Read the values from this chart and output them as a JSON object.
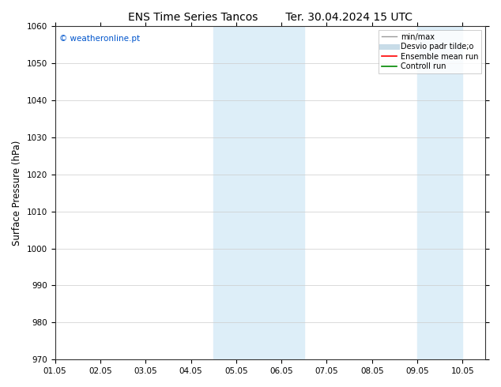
{
  "title_left": "ENS Time Series Tancos",
  "title_right": "Ter. 30.04.2024 15 UTC",
  "ylabel": "Surface Pressure (hPa)",
  "ylim": [
    970,
    1060
  ],
  "yticks": [
    970,
    980,
    990,
    1000,
    1010,
    1020,
    1030,
    1040,
    1050,
    1060
  ],
  "xlim": [
    0.0,
    9.5
  ],
  "xtick_labels": [
    "01.05",
    "02.05",
    "03.05",
    "04.05",
    "05.05",
    "06.05",
    "07.05",
    "08.05",
    "09.05",
    "10.05"
  ],
  "xtick_positions": [
    0.0,
    1.0,
    2.0,
    3.0,
    4.0,
    5.0,
    6.0,
    7.0,
    8.0,
    9.0
  ],
  "shaded_bands": [
    {
      "xmin": 3.5,
      "xmax": 4.0,
      "color": "#ddeef8"
    },
    {
      "xmin": 4.0,
      "xmax": 5.5,
      "color": "#ddeef8"
    },
    {
      "xmin": 8.0,
      "xmax": 8.5,
      "color": "#ddeef8"
    },
    {
      "xmin": 8.5,
      "xmax": 9.0,
      "color": "#ddeef8"
    }
  ],
  "watermark": "© weatheronline.pt",
  "watermark_color": "#0055cc",
  "background_color": "#ffffff",
  "legend_items": [
    {
      "label": "min/max",
      "color": "#999999",
      "lw": 1.0
    },
    {
      "label": "Desvio padr tilde;o",
      "color": "#c8dce8",
      "lw": 5
    },
    {
      "label": "Ensemble mean run",
      "color": "#ff0000",
      "lw": 1.2
    },
    {
      "label": "Controll run",
      "color": "#008800",
      "lw": 1.2
    }
  ],
  "grid_color": "#cccccc",
  "title_fontsize": 10,
  "tick_fontsize": 7.5,
  "ylabel_fontsize": 8.5
}
